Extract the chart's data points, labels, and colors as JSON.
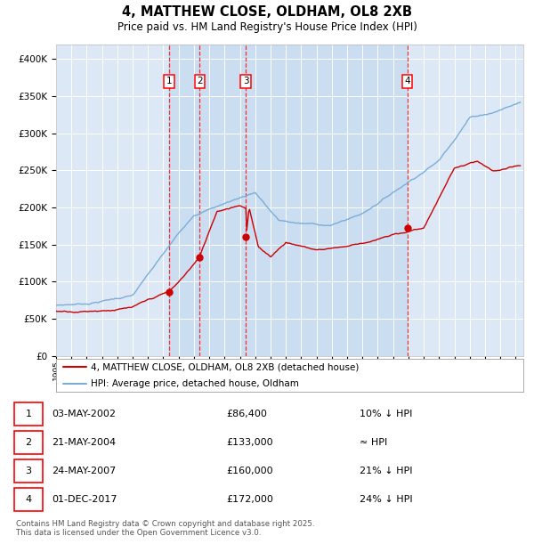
{
  "title": "4, MATTHEW CLOSE, OLDHAM, OL8 2XB",
  "subtitle": "Price paid vs. HM Land Registry's House Price Index (HPI)",
  "background_color": "#ffffff",
  "plot_bg_color": "#dce8f5",
  "grid_color": "#ffffff",
  "red_line_color": "#cc0000",
  "blue_line_color": "#7aaed6",
  "ylim": [
    0,
    420000
  ],
  "yticks": [
    0,
    50000,
    100000,
    150000,
    200000,
    250000,
    300000,
    350000,
    400000
  ],
  "sales": [
    {
      "label": "1",
      "date": "03-MAY-2002",
      "price": 86400,
      "note": "10% ↓ HPI",
      "x_year": 2002.37
    },
    {
      "label": "2",
      "date": "21-MAY-2004",
      "price": 133000,
      "note": "≈ HPI",
      "x_year": 2004.38
    },
    {
      "label": "3",
      "date": "24-MAY-2007",
      "price": 160000,
      "note": "21% ↓ HPI",
      "x_year": 2007.39
    },
    {
      "label": "4",
      "date": "01-DEC-2017",
      "price": 172000,
      "note": "24% ↓ HPI",
      "x_year": 2017.92
    }
  ],
  "legend_red": "4, MATTHEW CLOSE, OLDHAM, OL8 2XB (detached house)",
  "legend_blue": "HPI: Average price, detached house, Oldham",
  "footer": "Contains HM Land Registry data © Crown copyright and database right 2025.\nThis data is licensed under the Open Government Licence v3.0.",
  "shaded_region": [
    2002.37,
    2017.92
  ],
  "xlim": [
    1995,
    2025.5
  ],
  "x_start": 1995,
  "x_end": 2025
}
